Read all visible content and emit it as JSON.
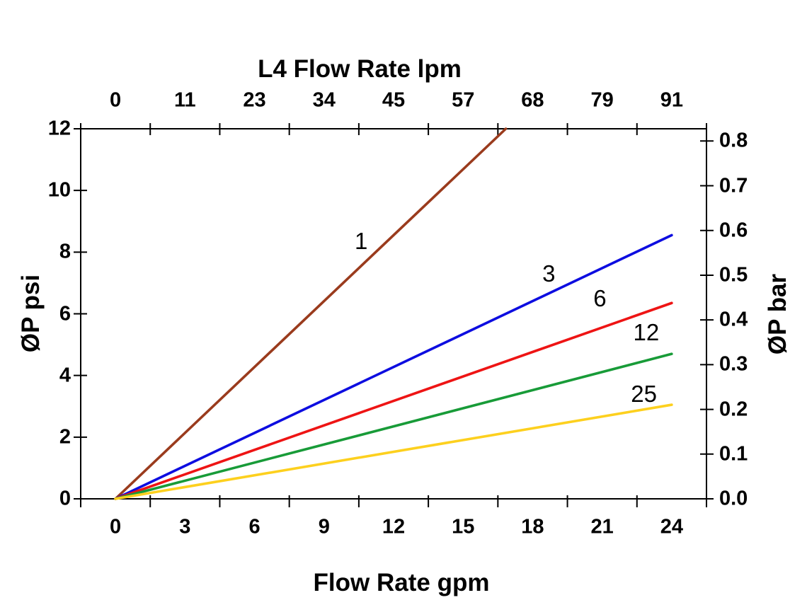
{
  "page": {
    "background": "#ffffff"
  },
  "chart_data": {
    "type": "line",
    "top_axis": {
      "title": "L4 Flow Rate lpm",
      "tick_labels": [
        "0",
        "11",
        "23",
        "34",
        "45",
        "57",
        "68",
        "79",
        "91"
      ]
    },
    "bottom_axis": {
      "title": "Flow Rate gpm",
      "tick_labels": [
        "0",
        "3",
        "6",
        "9",
        "12",
        "15",
        "18",
        "21",
        "24"
      ]
    },
    "left_axis": {
      "title": "ØP psi",
      "tick_values": [
        0,
        2,
        4,
        6,
        8,
        10,
        12
      ],
      "range_psi": [
        0,
        12
      ]
    },
    "right_axis": {
      "title": "ØP bar",
      "tick_values": [
        0.0,
        0.1,
        0.2,
        0.3,
        0.4,
        0.5,
        0.6,
        0.7,
        0.8
      ],
      "psi_per_bar": 14.5038
    },
    "x_range_gpm": [
      0,
      24
    ],
    "x_step_gpm": 3,
    "axis_color": "#000000",
    "grid": "off",
    "series": [
      {
        "name": "1",
        "color": "#9a3b1d",
        "psi_at_24_gpm": 17.1,
        "label_at_gpm_psi": [
          10.6,
          8.35
        ]
      },
      {
        "name": "3",
        "color": "#0d0de0",
        "psi_at_24_gpm": 8.55,
        "label_at_gpm_psi": [
          18.7,
          7.3
        ]
      },
      {
        "name": "6",
        "color": "#ee1414",
        "psi_at_24_gpm": 6.35,
        "label_at_gpm_psi": [
          20.9,
          6.5
        ]
      },
      {
        "name": "12",
        "color": "#189b38",
        "psi_at_24_gpm": 4.7,
        "label_at_gpm_psi": [
          22.9,
          5.4
        ]
      },
      {
        "name": "25",
        "color": "#fdd01e",
        "psi_at_24_gpm": 3.05,
        "label_at_gpm_psi": [
          22.8,
          3.4
        ]
      }
    ]
  }
}
